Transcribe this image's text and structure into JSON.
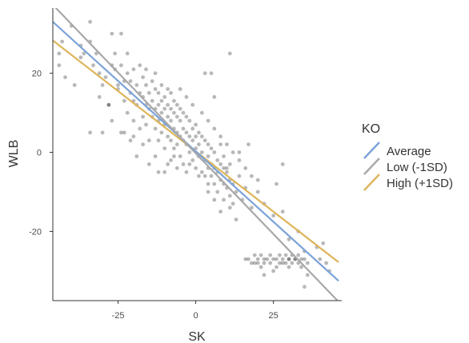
{
  "chart_data": {
    "type": "scatter",
    "title": "",
    "xlabel": "SK",
    "ylabel": "WLB",
    "xlim": [
      -46,
      47
    ],
    "ylim": [
      -37.5,
      36.5
    ],
    "x_ticks": [
      -25,
      0,
      25
    ],
    "x_tick_labels": [
      "-25",
      "0",
      "25"
    ],
    "y_ticks": [
      -20,
      0,
      20
    ],
    "y_tick_labels": [
      "-20",
      "0",
      "20"
    ],
    "grid": false,
    "legend": {
      "title": "KO",
      "placement": "right",
      "entries": [
        "Average",
        "Low (-1SD)",
        "High (+1SD)"
      ]
    },
    "series": [
      {
        "name": "Average",
        "color": "#7ba3d9",
        "line": [
          [
            -46,
            33
          ],
          [
            46,
            -32.5
          ]
        ]
      },
      {
        "name": "Low (-1SD)",
        "color": "#a8a8a8",
        "line": [
          [
            -46,
            37.3
          ],
          [
            46,
            -37.8
          ]
        ]
      },
      {
        "name": "High (+1SD)",
        "color": "#ddb55a",
        "line": [
          [
            -46,
            28.3
          ],
          [
            46,
            -27.8
          ]
        ]
      }
    ],
    "points": [
      [
        -44,
        22
      ],
      [
        -44,
        25
      ],
      [
        -43,
        28
      ],
      [
        -42,
        19
      ],
      [
        -40,
        32
      ],
      [
        -39,
        17
      ],
      [
        -37,
        24
      ],
      [
        -36,
        25
      ],
      [
        -34,
        28
      ],
      [
        -34,
        5
      ],
      [
        -33,
        22
      ],
      [
        -32,
        25
      ],
      [
        -31,
        20
      ],
      [
        -31,
        14
      ],
      [
        -30,
        17
      ],
      [
        -30,
        5
      ],
      [
        -29,
        19
      ],
      [
        -28,
        12
      ],
      [
        -27,
        22
      ],
      [
        -27,
        8
      ],
      [
        -26,
        21
      ],
      [
        -26,
        25
      ],
      [
        -25,
        17
      ],
      [
        -25,
        16
      ],
      [
        -24,
        30
      ],
      [
        -24,
        22
      ],
      [
        -23,
        18
      ],
      [
        -23,
        13
      ],
      [
        -23,
        5
      ],
      [
        -22,
        25
      ],
      [
        -22,
        20
      ],
      [
        -22,
        10
      ],
      [
        -21,
        18
      ],
      [
        -21,
        15
      ],
      [
        -20,
        21
      ],
      [
        -20,
        13
      ],
      [
        -20,
        8
      ],
      [
        -20,
        4
      ],
      [
        -19,
        17
      ],
      [
        -19,
        12
      ],
      [
        -18,
        22
      ],
      [
        -18,
        15
      ],
      [
        -18,
        6
      ],
      [
        -17,
        19
      ],
      [
        -17,
        14
      ],
      [
        -17,
        9
      ],
      [
        -17,
        2
      ],
      [
        -16,
        21
      ],
      [
        -16,
        17
      ],
      [
        -16,
        12
      ],
      [
        -16,
        7
      ],
      [
        -15,
        15
      ],
      [
        -15,
        11
      ],
      [
        -15,
        3
      ],
      [
        -14,
        18
      ],
      [
        -14,
        13
      ],
      [
        -14,
        9
      ],
      [
        -13,
        20
      ],
      [
        -13,
        16
      ],
      [
        -13,
        11
      ],
      [
        -13,
        6
      ],
      [
        -13,
        -1
      ],
      [
        -12,
        15
      ],
      [
        -12,
        12
      ],
      [
        -12,
        8
      ],
      [
        -12,
        3
      ],
      [
        -11,
        17
      ],
      [
        -11,
        13
      ],
      [
        -11,
        10
      ],
      [
        -11,
        5
      ],
      [
        -10,
        14
      ],
      [
        -10,
        11
      ],
      [
        -10,
        7
      ],
      [
        -10,
        1
      ],
      [
        -10,
        -5
      ],
      [
        -9,
        16
      ],
      [
        -9,
        12
      ],
      [
        -9,
        9
      ],
      [
        -9,
        4
      ],
      [
        -8,
        15
      ],
      [
        -8,
        11
      ],
      [
        -8,
        8
      ],
      [
        -8,
        3
      ],
      [
        -8,
        -2
      ],
      [
        -7,
        13
      ],
      [
        -7,
        10
      ],
      [
        -7,
        6
      ],
      [
        -7,
        1
      ],
      [
        -6,
        12
      ],
      [
        -6,
        9
      ],
      [
        -6,
        5
      ],
      [
        -6,
        2
      ],
      [
        -5,
        11
      ],
      [
        -5,
        8
      ],
      [
        -5,
        4
      ],
      [
        -5,
        -1
      ],
      [
        -4,
        10
      ],
      [
        -4,
        6
      ],
      [
        -4,
        3
      ],
      [
        -4,
        -3
      ],
      [
        -3,
        9
      ],
      [
        -3,
        5
      ],
      [
        -3,
        2
      ],
      [
        -2,
        8
      ],
      [
        -2,
        4
      ],
      [
        -2,
        0
      ],
      [
        -1,
        6
      ],
      [
        -1,
        3
      ],
      [
        -1,
        -2
      ],
      [
        0,
        7
      ],
      [
        0,
        4
      ],
      [
        0,
        1
      ],
      [
        0,
        -4
      ],
      [
        1,
        5
      ],
      [
        1,
        2
      ],
      [
        1,
        -1
      ],
      [
        2,
        4
      ],
      [
        2,
        0
      ],
      [
        2,
        -5
      ],
      [
        3,
        3
      ],
      [
        3,
        -2
      ],
      [
        3,
        -6
      ],
      [
        4,
        2
      ],
      [
        4,
        -1
      ],
      [
        4,
        -4
      ],
      [
        4,
        -8
      ],
      [
        5,
        1
      ],
      [
        5,
        -3
      ],
      [
        5,
        -6
      ],
      [
        6,
        0
      ],
      [
        6,
        -4
      ],
      [
        6,
        -8
      ],
      [
        7,
        -2
      ],
      [
        7,
        -5
      ],
      [
        7,
        -10
      ],
      [
        8,
        -3
      ],
      [
        8,
        -7
      ],
      [
        9,
        -4
      ],
      [
        9,
        -8
      ],
      [
        9,
        -12
      ],
      [
        10,
        -5
      ],
      [
        10,
        -9
      ],
      [
        11,
        -7
      ],
      [
        11,
        -11
      ],
      [
        12,
        -8
      ],
      [
        12,
        -13
      ],
      [
        13,
        -10
      ],
      [
        14,
        -6
      ],
      [
        15,
        -12
      ],
      [
        16,
        -9
      ],
      [
        18,
        -14
      ],
      [
        20,
        -7
      ],
      [
        -5,
        16
      ],
      [
        -3,
        14
      ],
      [
        -1,
        12
      ],
      [
        2,
        10
      ],
      [
        4,
        8
      ],
      [
        6,
        6
      ],
      [
        8,
        4
      ],
      [
        10,
        2
      ],
      [
        12,
        0
      ],
      [
        14,
        -2
      ],
      [
        16,
        -4
      ],
      [
        18,
        -6
      ],
      [
        20,
        -10
      ],
      [
        22,
        -13
      ],
      [
        25,
        -16
      ],
      [
        28,
        -15
      ],
      [
        30,
        -22
      ],
      [
        33,
        -20
      ],
      [
        -2,
        -3
      ],
      [
        1,
        -6
      ],
      [
        4,
        -10
      ],
      [
        6,
        -12
      ],
      [
        8,
        -15
      ],
      [
        11,
        -14
      ],
      [
        13,
        -17
      ],
      [
        -15,
        -3
      ],
      [
        -12,
        -5
      ],
      [
        -9,
        -3
      ],
      [
        -6,
        -4
      ],
      [
        5,
        20
      ],
      [
        3,
        20
      ],
      [
        6,
        14
      ],
      [
        -3,
        -5
      ],
      [
        9,
        -1
      ],
      [
        11,
        -3
      ],
      [
        14,
        0
      ],
      [
        17,
        2
      ],
      [
        -19,
        -1
      ],
      [
        -21,
        3
      ],
      [
        -24,
        5
      ],
      [
        -28,
        12
      ],
      [
        16,
        -27
      ],
      [
        17,
        -27
      ],
      [
        18,
        -28
      ],
      [
        19,
        -26
      ],
      [
        20,
        -27
      ],
      [
        20,
        -28
      ],
      [
        21,
        -26
      ],
      [
        21,
        -29
      ],
      [
        22,
        -27
      ],
      [
        22,
        -28
      ],
      [
        23,
        -27
      ],
      [
        24,
        -26
      ],
      [
        24,
        -28
      ],
      [
        25,
        -27
      ],
      [
        26,
        -27
      ],
      [
        26,
        -29
      ],
      [
        27,
        -26
      ],
      [
        27,
        -28
      ],
      [
        28,
        -27
      ],
      [
        28,
        -28
      ],
      [
        29,
        -26
      ],
      [
        29,
        -28
      ],
      [
        30,
        -27
      ],
      [
        30,
        -27
      ],
      [
        31,
        -26
      ],
      [
        31,
        -28
      ],
      [
        32,
        -27
      ],
      [
        32,
        -27
      ],
      [
        33,
        -28
      ],
      [
        33,
        -26
      ],
      [
        34,
        -27
      ],
      [
        34,
        -29
      ],
      [
        35,
        -27
      ],
      [
        35,
        -25
      ],
      [
        36,
        -28
      ],
      [
        36,
        -31
      ],
      [
        30,
        -29
      ],
      [
        25,
        -30
      ],
      [
        22,
        -31
      ],
      [
        19,
        -28
      ],
      [
        35,
        -34
      ],
      [
        39,
        -24
      ],
      [
        40,
        -27
      ],
      [
        41,
        -23
      ],
      [
        42,
        -28
      ],
      [
        43,
        -30
      ],
      [
        28,
        -3
      ],
      [
        26,
        -8
      ],
      [
        -34,
        33
      ],
      [
        -27,
        30
      ],
      [
        -37,
        27
      ],
      [
        11,
        25
      ],
      [
        8,
        2
      ],
      [
        -7,
        -1
      ],
      [
        10,
        -4
      ]
    ]
  }
}
